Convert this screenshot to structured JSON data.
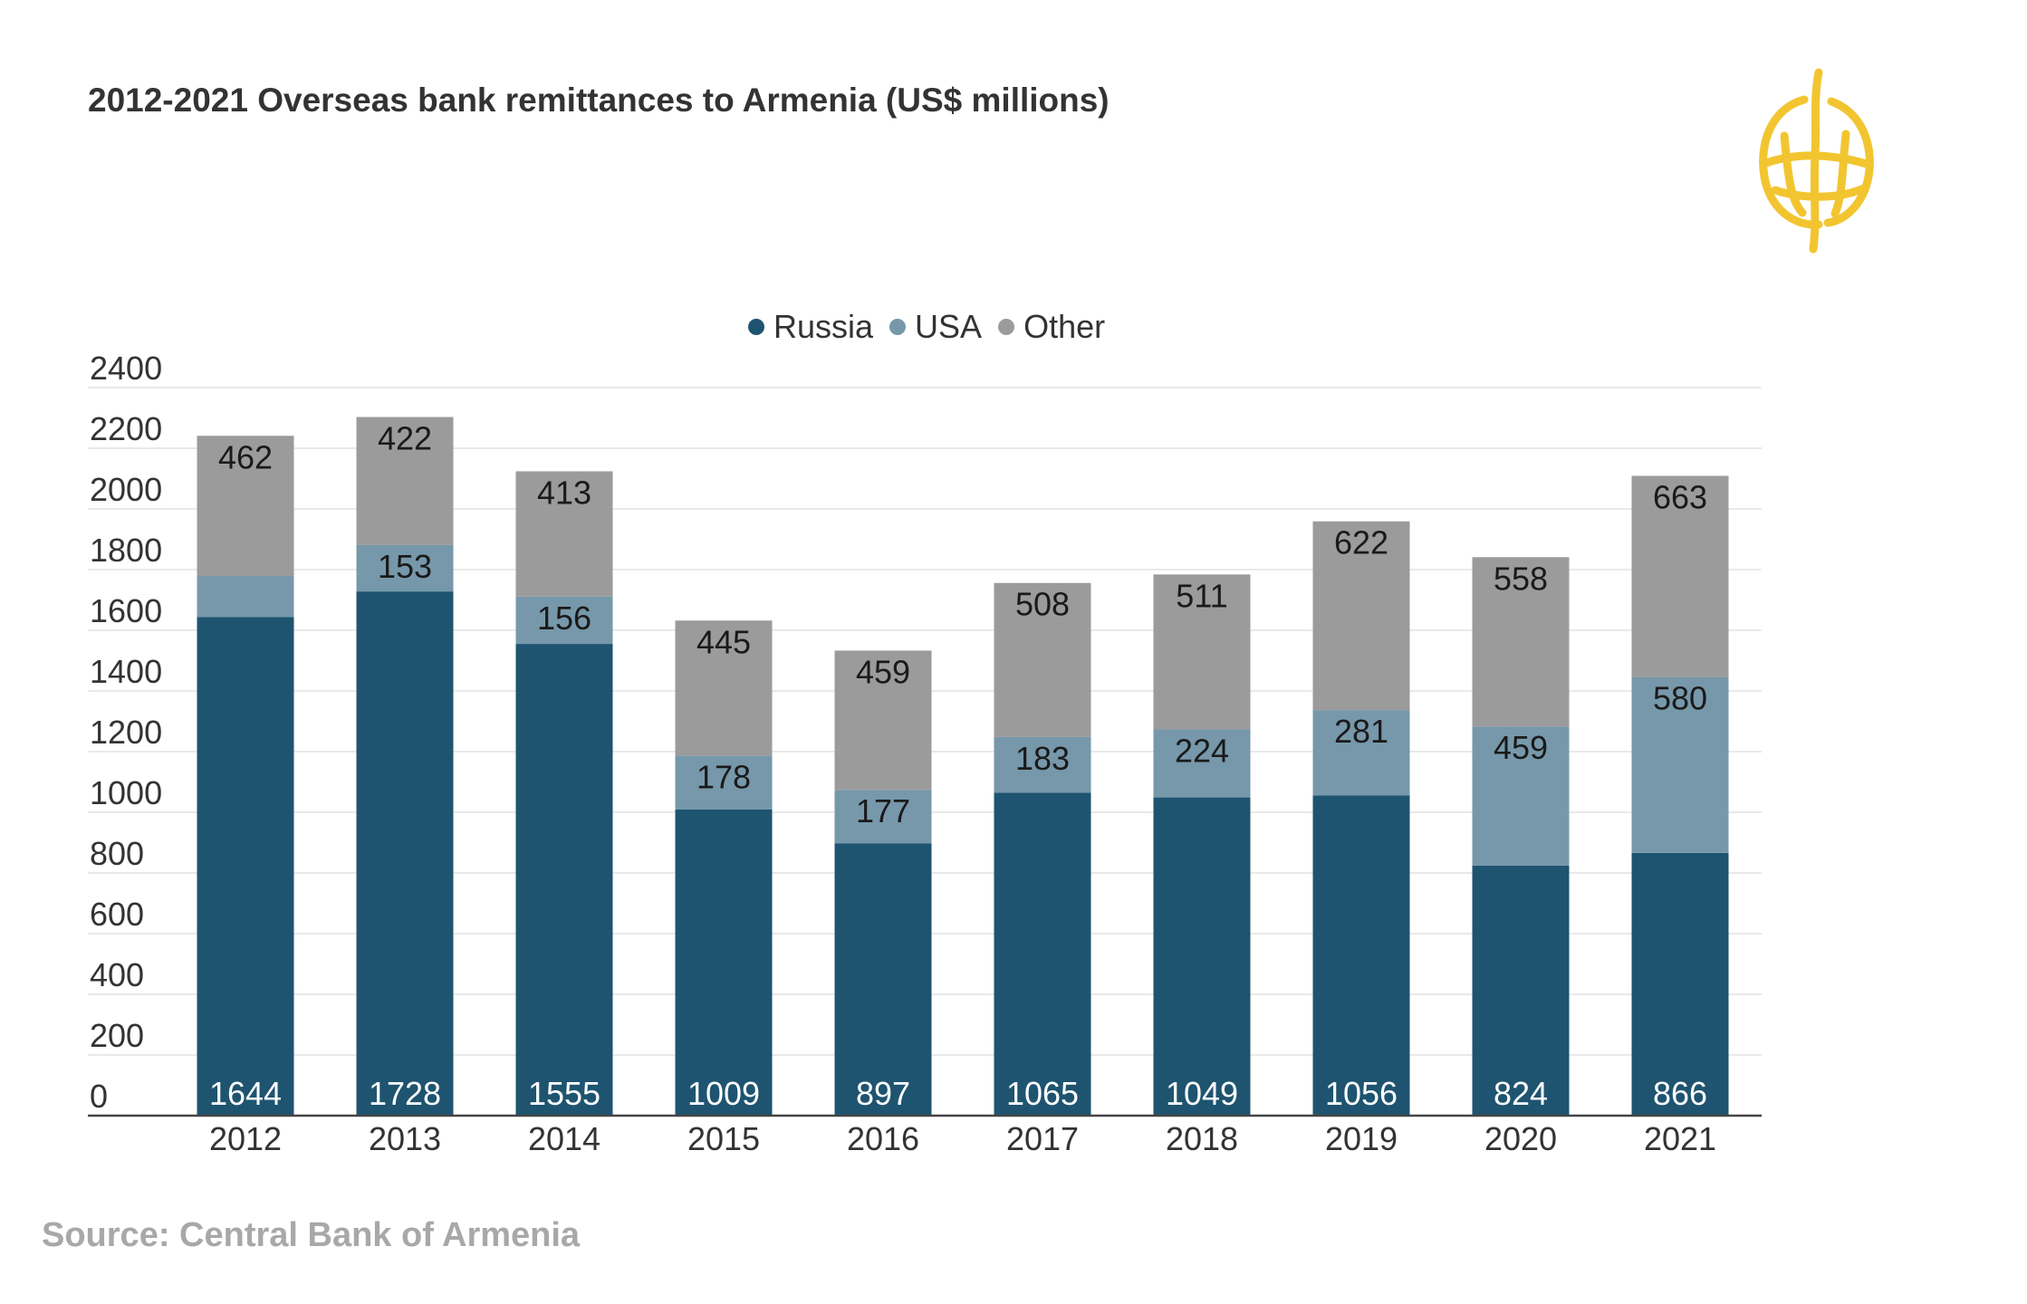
{
  "chart_data": {
    "type": "bar",
    "stacked": true,
    "title": "2012-2021 Overseas bank remittances to Armenia (US$ millions)",
    "source": "Source: Central Bank of Armenia",
    "categories": [
      "2012",
      "2013",
      "2014",
      "2015",
      "2016",
      "2017",
      "2018",
      "2019",
      "2020",
      "2021"
    ],
    "series": [
      {
        "name": "Russia",
        "color": "#1e5470",
        "values": [
          1644,
          1728,
          1555,
          1009,
          897,
          1065,
          1049,
          1056,
          824,
          866
        ]
      },
      {
        "name": "USA",
        "color": "#7698aa",
        "values": [
          135,
          153,
          156,
          178,
          177,
          183,
          224,
          281,
          459,
          580
        ]
      },
      {
        "name": "Other",
        "color": "#9b9b9b",
        "values": [
          462,
          422,
          413,
          445,
          459,
          508,
          511,
          622,
          558,
          663
        ]
      }
    ],
    "data_labels": {
      "Russia": [
        "1644",
        "1728",
        "1555",
        "1009",
        "897",
        "1065",
        "1049",
        "1056",
        "824",
        "866"
      ],
      "USA": [
        "",
        "153",
        "156",
        "178",
        "177",
        "183",
        "224",
        "281",
        "459",
        "580"
      ],
      "Other": [
        "462",
        "422",
        "413",
        "445",
        "459",
        "508",
        "511",
        "622",
        "558",
        "663"
      ]
    },
    "ylim": [
      0,
      2400
    ],
    "yticks": [
      "0",
      "200",
      "400",
      "600",
      "800",
      "1000",
      "1200",
      "1400",
      "1600",
      "1800",
      "2000",
      "2200",
      "2400"
    ],
    "grid": true,
    "legend_position": "top-center",
    "logo_color": "#f2c530"
  }
}
